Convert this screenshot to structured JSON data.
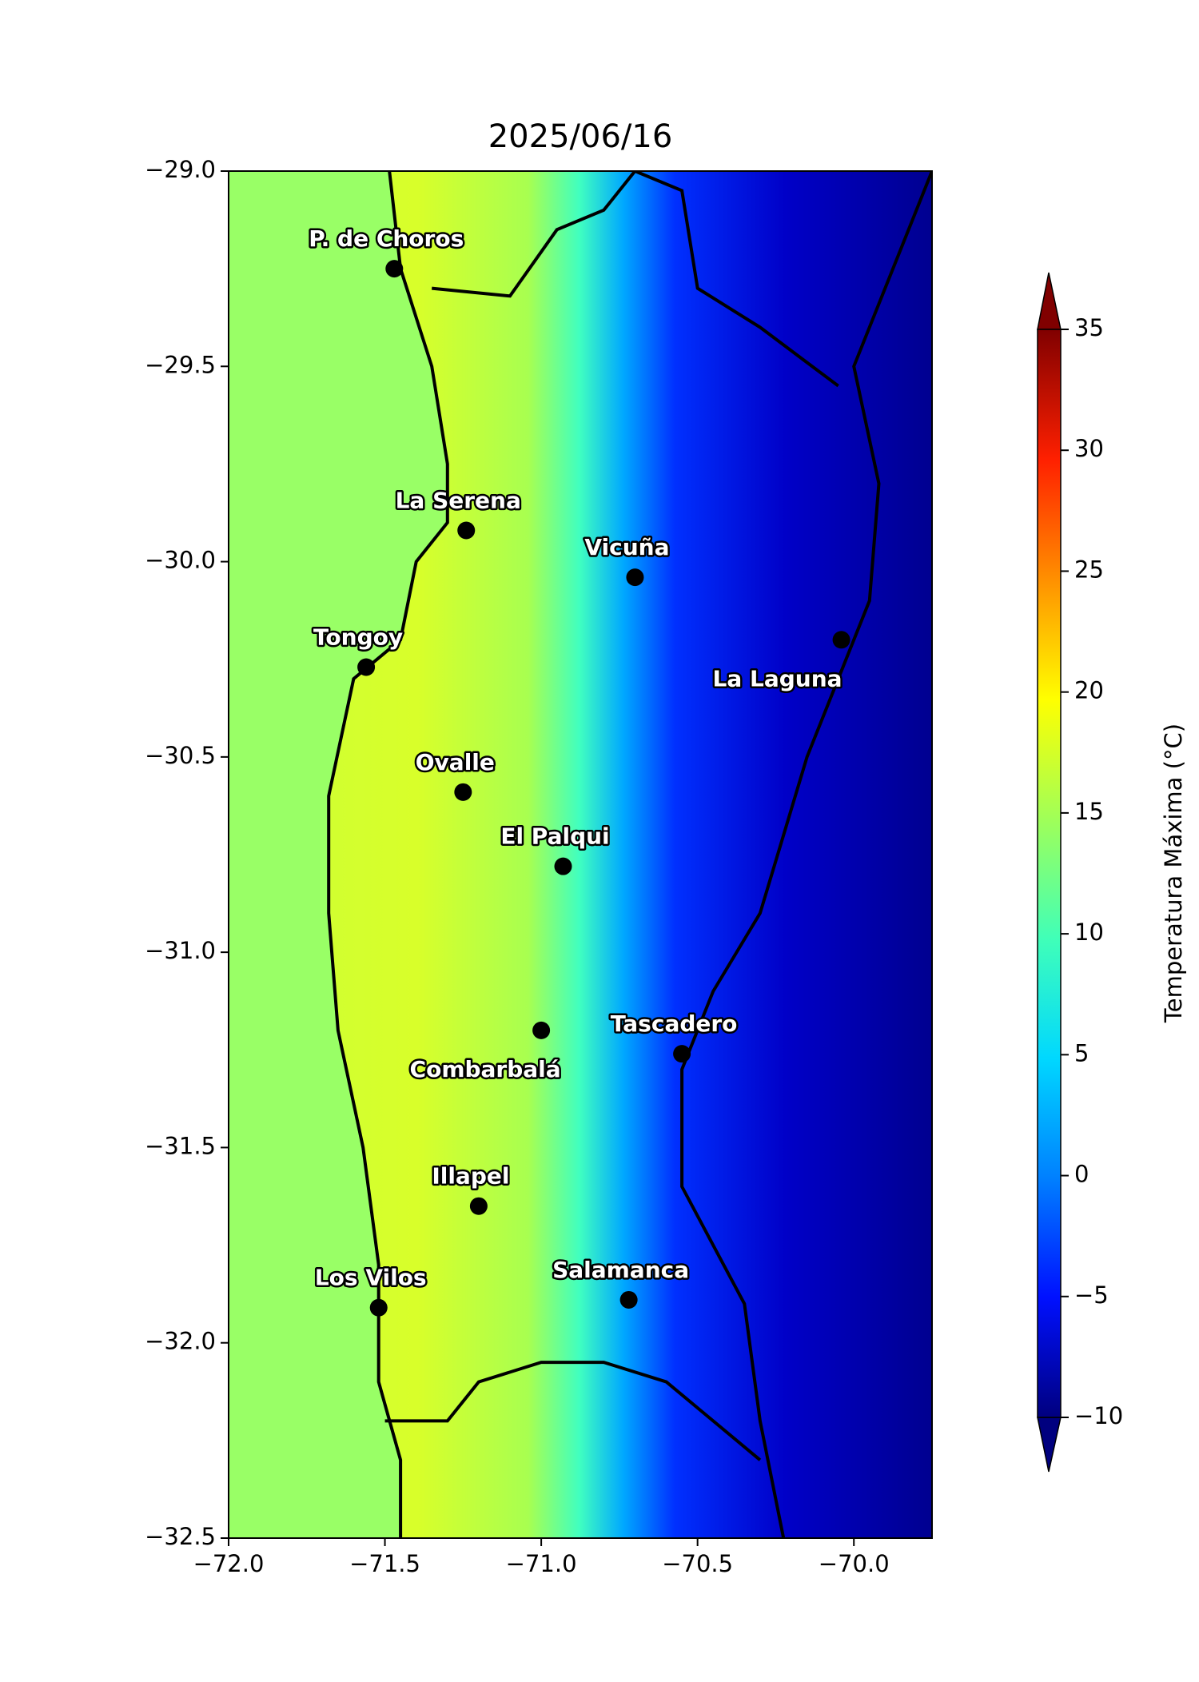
{
  "title": "2025/06/16",
  "map": {
    "xlim": [
      -72.0,
      -69.75
    ],
    "ylim": [
      -29.0,
      -32.5
    ],
    "xticks": [
      {
        "value": -72.0,
        "label": "−72.0"
      },
      {
        "value": -71.5,
        "label": "−71.5"
      },
      {
        "value": -71.0,
        "label": "−71.0"
      },
      {
        "value": -70.5,
        "label": "−70.5"
      },
      {
        "value": -70.0,
        "label": "−70.0"
      }
    ],
    "yticks": [
      {
        "value": -29.0,
        "label": "−29.0"
      },
      {
        "value": -29.5,
        "label": "−29.5"
      },
      {
        "value": -30.0,
        "label": "−30.0"
      },
      {
        "value": -30.5,
        "label": "−30.5"
      },
      {
        "value": -31.0,
        "label": "−31.0"
      },
      {
        "value": -31.5,
        "label": "−31.5"
      },
      {
        "value": -32.0,
        "label": "−32.0"
      },
      {
        "value": -32.5,
        "label": "−32.5"
      }
    ],
    "cities": [
      {
        "name": "P. de Choros",
        "lon": -71.47,
        "lat": -29.25
      },
      {
        "name": "La Serena",
        "lon": -71.24,
        "lat": -29.92
      },
      {
        "name": "Vicuña",
        "lon": -70.7,
        "lat": -30.04
      },
      {
        "name": "La Laguna",
        "lon": -70.04,
        "lat": -30.2
      },
      {
        "name": "Tongoy",
        "lon": -71.56,
        "lat": -30.27
      },
      {
        "name": "Ovalle",
        "lon": -71.25,
        "lat": -30.59
      },
      {
        "name": "El Palqui",
        "lon": -70.93,
        "lat": -30.78
      },
      {
        "name": "Combarbalá",
        "lon": -71.0,
        "lat": -31.2
      },
      {
        "name": "Tascadero",
        "lon": -70.55,
        "lat": -31.26
      },
      {
        "name": "Illapel",
        "lon": -71.2,
        "lat": -31.65
      },
      {
        "name": "Los Vilos",
        "lon": -71.52,
        "lat": -31.91
      },
      {
        "name": "Salamanca",
        "lon": -70.72,
        "lat": -31.89
      }
    ]
  },
  "colorbar": {
    "label": "Temperatura Máxima (°C)",
    "lim": [
      -10,
      35
    ],
    "ticks": [
      {
        "value": -10,
        "label": "−10"
      },
      {
        "value": -5,
        "label": "−5"
      },
      0,
      5,
      10,
      15,
      20,
      25,
      30,
      35
    ]
  }
}
